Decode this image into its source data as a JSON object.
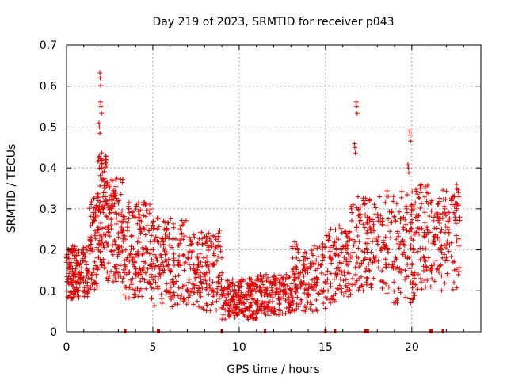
{
  "chart_data": {
    "type": "scatter",
    "title": "Day 219 of 2023, SRMTID for receiver p043",
    "xlabel": "GPS time / hours",
    "ylabel": "SRMTID / TECUs",
    "xlim": [
      0,
      24
    ],
    "ylim": [
      0,
      0.7
    ],
    "xticks": [
      0,
      5,
      10,
      15,
      20
    ],
    "xtick_labels": [
      "0",
      "5",
      "10",
      "15",
      "20"
    ],
    "yticks": [
      0,
      0.1,
      0.2,
      0.3,
      0.4,
      0.5,
      0.6,
      0.7
    ],
    "ytick_labels": [
      "0",
      "0.1",
      "0.2",
      "0.3",
      "0.4",
      "0.5",
      "0.6",
      "0.7"
    ],
    "grid": true,
    "marker": "+",
    "color": "#e00000",
    "series": [
      {
        "name": "SRMTID",
        "x": [
          0.0,
          0.1,
          0.2,
          0.3,
          0.4,
          0.5,
          0.6,
          0.8,
          1.0,
          1.2,
          1.4,
          1.6,
          1.8,
          1.9,
          1.95,
          2.0,
          2.05,
          2.1,
          2.2,
          2.3,
          2.4,
          2.6,
          2.8,
          3.0,
          3.2,
          3.4,
          3.6,
          3.8,
          4.0,
          4.2,
          4.4,
          4.6,
          4.8,
          5.0,
          5.2,
          5.4,
          5.6,
          5.8,
          6.0,
          6.2,
          6.5,
          6.8,
          7.0,
          7.2,
          7.4,
          7.6,
          7.8,
          8.0,
          8.2,
          8.5,
          8.8,
          9.0,
          9.2,
          9.4,
          9.6,
          9.8,
          10.0,
          10.2,
          10.4,
          10.6,
          10.8,
          11.0,
          11.2,
          11.5,
          11.8,
          12.0,
          12.3,
          12.6,
          12.9,
          13.2,
          13.4,
          13.6,
          13.8,
          14.0,
          14.2,
          14.5,
          14.8,
          15.0,
          15.3,
          15.6,
          15.9,
          16.2,
          16.5,
          16.7,
          16.8,
          17.0,
          17.2,
          17.4,
          17.6,
          17.8,
          18.0,
          18.3,
          18.6,
          18.9,
          19.2,
          19.5,
          19.7,
          19.8,
          19.9,
          20.1,
          20.3,
          20.5,
          20.7,
          20.9,
          21.1,
          21.3,
          21.5,
          21.7,
          21.9,
          22.1,
          22.3,
          22.5,
          22.7
        ],
        "y": [
          0.18,
          0.12,
          0.16,
          0.2,
          0.14,
          0.1,
          0.17,
          0.13,
          0.19,
          0.15,
          0.22,
          0.28,
          0.33,
          0.5,
          0.62,
          0.55,
          0.4,
          0.3,
          0.35,
          0.42,
          0.25,
          0.3,
          0.22,
          0.2,
          0.25,
          0.16,
          0.3,
          0.18,
          0.14,
          0.28,
          0.15,
          0.2,
          0.12,
          0.26,
          0.18,
          0.14,
          0.22,
          0.1,
          0.15,
          0.12,
          0.17,
          0.08,
          0.1,
          0.22,
          0.15,
          0.18,
          0.12,
          0.14,
          0.16,
          0.1,
          0.12,
          0.09,
          0.07,
          0.05,
          0.08,
          0.06,
          0.11,
          0.05,
          0.09,
          0.06,
          0.08,
          0.07,
          0.1,
          0.06,
          0.09,
          0.12,
          0.08,
          0.1,
          0.07,
          0.14,
          0.2,
          0.12,
          0.15,
          0.09,
          0.11,
          0.13,
          0.1,
          0.12,
          0.18,
          0.14,
          0.2,
          0.24,
          0.3,
          0.45,
          0.55,
          0.28,
          0.32,
          0.2,
          0.25,
          0.18,
          0.22,
          0.27,
          0.2,
          0.16,
          0.24,
          0.22,
          0.3,
          0.4,
          0.48,
          0.2,
          0.28,
          0.35,
          0.18,
          0.25,
          0.15,
          0.22,
          0.28,
          0.2,
          0.3,
          0.25,
          0.32,
          0.28,
          0.34
        ],
        "scatter_bands": [
          {
            "x_range": [
              0.0,
              1.3
            ],
            "y_range": [
              0.08,
              0.21
            ],
            "count": 140
          },
          {
            "x_range": [
              1.3,
              1.8
            ],
            "y_range": [
              0.1,
              0.33
            ],
            "count": 60
          },
          {
            "x_range": [
              1.8,
              2.3
            ],
            "y_range": [
              0.15,
              0.44
            ],
            "count": 80
          },
          {
            "x_range": [
              2.3,
              3.3
            ],
            "y_range": [
              0.12,
              0.38
            ],
            "count": 110
          },
          {
            "x_range": [
              3.3,
              5.0
            ],
            "y_range": [
              0.08,
              0.32
            ],
            "count": 150
          },
          {
            "x_range": [
              5.0,
              7.0
            ],
            "y_range": [
              0.06,
              0.28
            ],
            "count": 140
          },
          {
            "x_range": [
              7.0,
              9.0
            ],
            "y_range": [
              0.05,
              0.25
            ],
            "count": 150
          },
          {
            "x_range": [
              9.0,
              11.0
            ],
            "y_range": [
              0.03,
              0.13
            ],
            "count": 170
          },
          {
            "x_range": [
              11.0,
              13.0
            ],
            "y_range": [
              0.04,
              0.14
            ],
            "count": 150
          },
          {
            "x_range": [
              13.0,
              15.0
            ],
            "y_range": [
              0.05,
              0.22
            ],
            "count": 140
          },
          {
            "x_range": [
              15.0,
              16.5
            ],
            "y_range": [
              0.07,
              0.26
            ],
            "count": 100
          },
          {
            "x_range": [
              16.5,
              18.5
            ],
            "y_range": [
              0.1,
              0.33
            ],
            "count": 130
          },
          {
            "x_range": [
              18.5,
              20.5
            ],
            "y_range": [
              0.07,
              0.35
            ],
            "count": 140
          },
          {
            "x_range": [
              20.5,
              22.8
            ],
            "y_range": [
              0.1,
              0.36
            ],
            "count": 150
          }
        ]
      }
    ],
    "data_gaps_hours": [
      3.4,
      5.3,
      5.35,
      9.0,
      11.5,
      15.0,
      15.55,
      17.3,
      17.35,
      17.4,
      17.45,
      21.1,
      21.15,
      21.8
    ]
  }
}
